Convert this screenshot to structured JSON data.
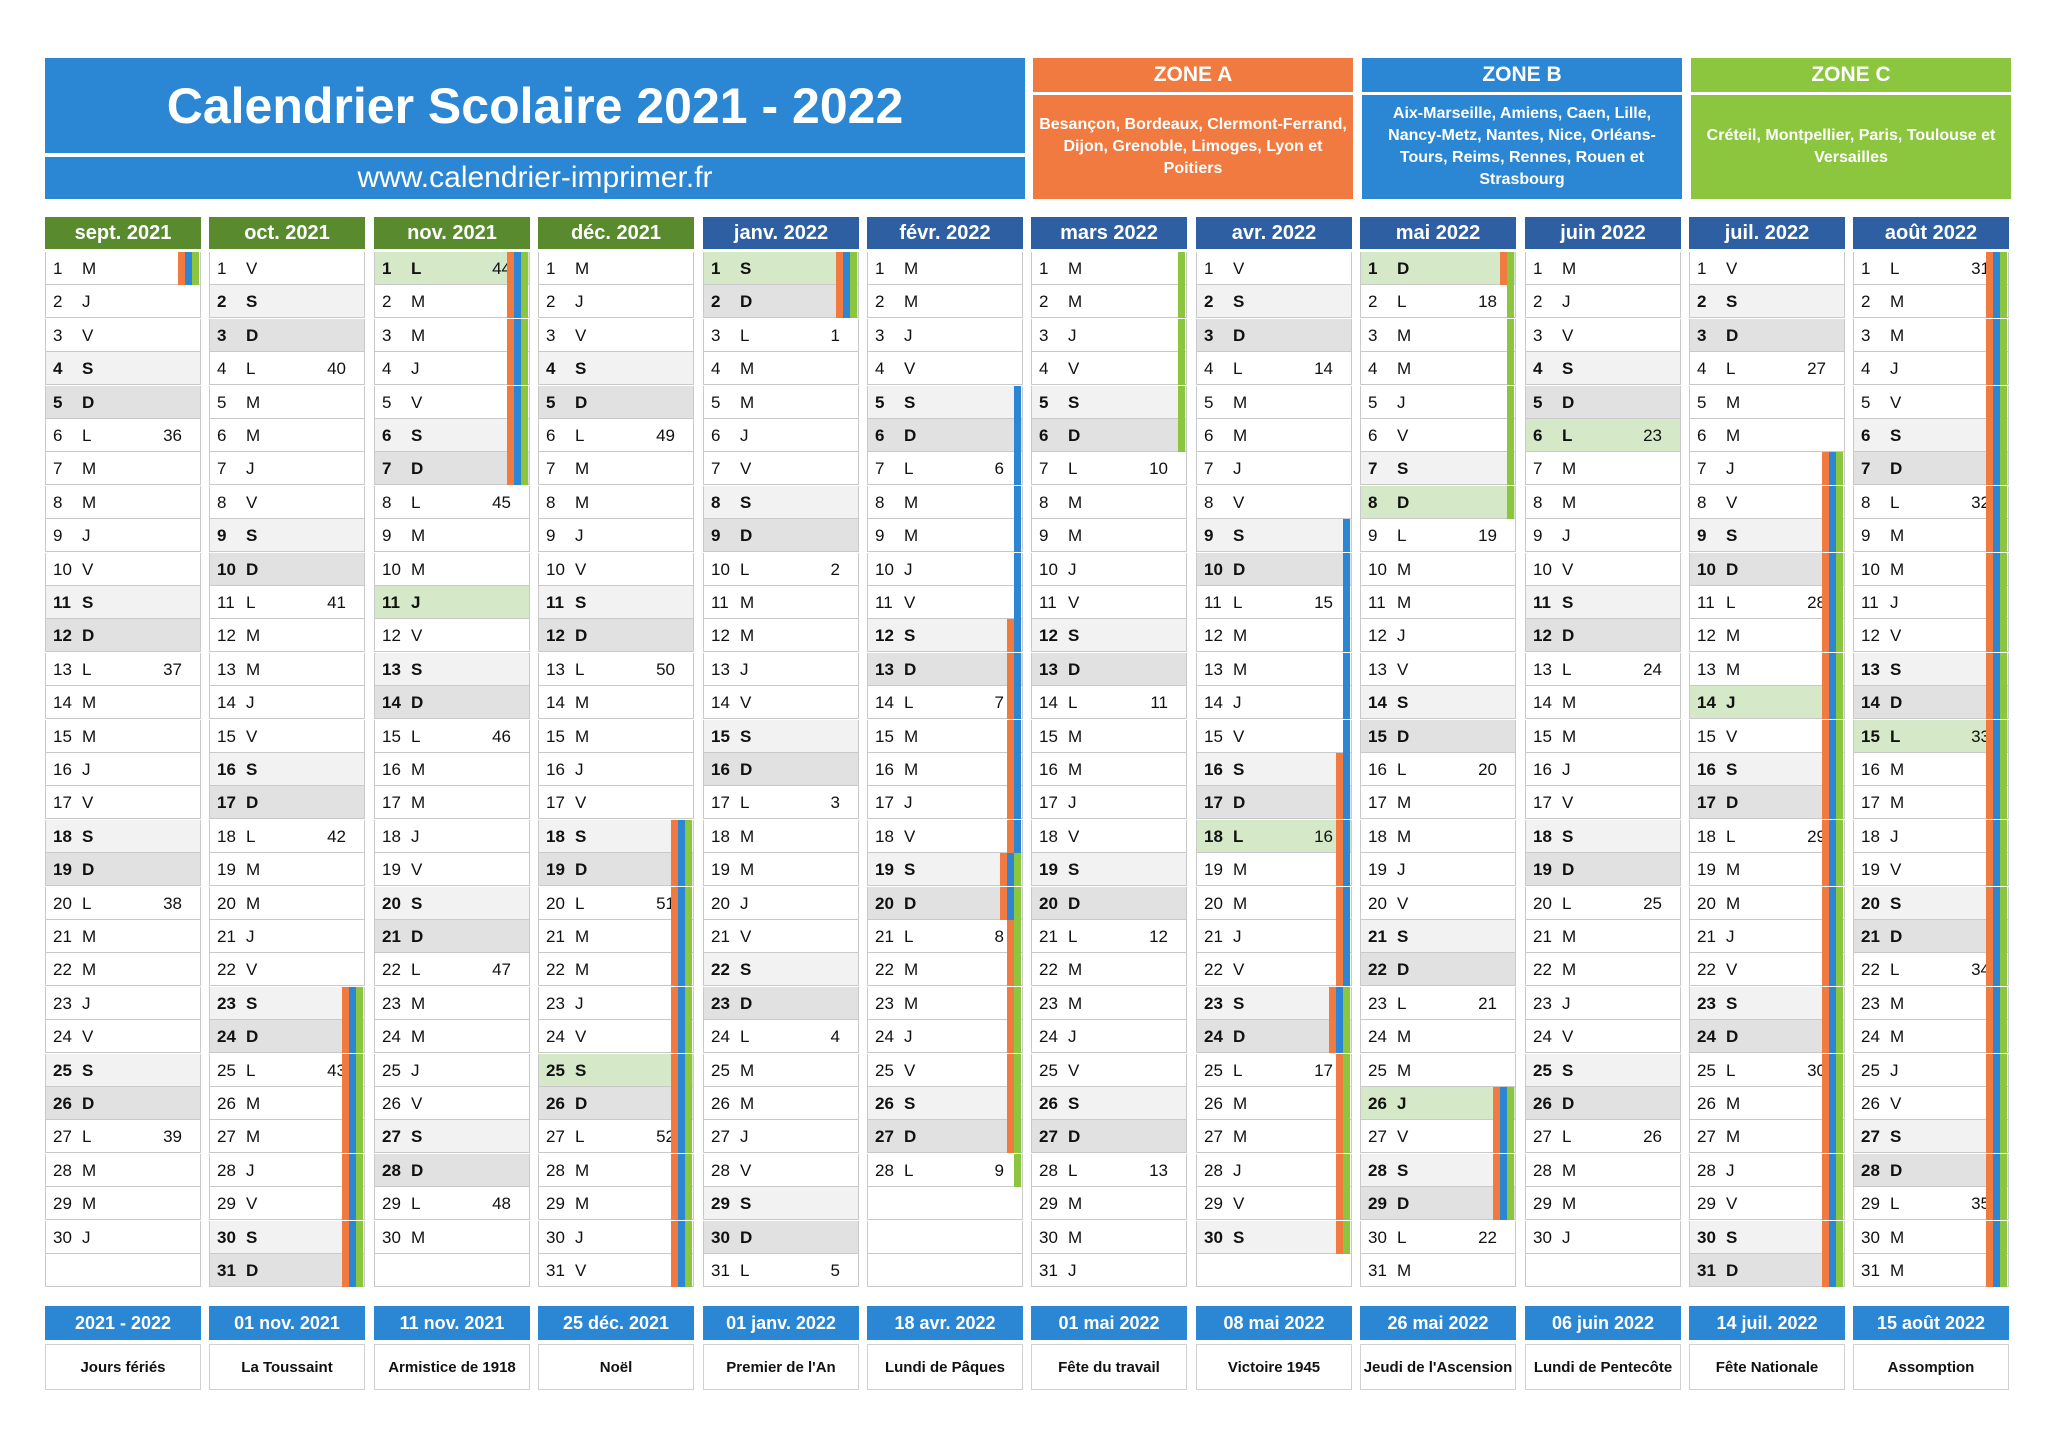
{
  "header": {
    "title": "Calendrier Scolaire 2021 - 2022",
    "url": "www.calendrier-imprimer.fr"
  },
  "zones": [
    {
      "name": "ZONE A",
      "cities": "Besançon, Bordeaux, Clermont-Ferrand, Dijon, Grenoble, Limoges, Lyon et Poitiers",
      "color": "#f07a3f"
    },
    {
      "name": "ZONE B",
      "cities": "Aix-Marseille, Amiens, Caen, Lille, Nancy-Metz, Nantes, Nice, Orléans-Tours, Reims, Rennes, Rouen et Strasbourg",
      "color": "#2b87d3"
    },
    {
      "name": "ZONE C",
      "cities": "Créteil, Montpellier, Paris, Toulouse et Versailles",
      "color": "#8cc63f"
    }
  ],
  "months": [
    {
      "label": "sept. 2021",
      "color": "#5a8a2e",
      "days": 30,
      "startIndex": 2,
      "weeks": {
        "6": "36",
        "13": "37",
        "20": "38",
        "27": "39"
      },
      "holidays": [],
      "bars": [
        {
          "zones": [
            0,
            1,
            2
          ],
          "from": 1,
          "to": 1
        }
      ]
    },
    {
      "label": "oct. 2021",
      "color": "#5a8a2e",
      "days": 31,
      "startIndex": 4,
      "weeks": {
        "4": "40",
        "11": "41",
        "18": "42",
        "25": "43"
      },
      "holidays": [],
      "bars": [
        {
          "zones": [
            0,
            1,
            2
          ],
          "from": 23,
          "to": 31
        }
      ]
    },
    {
      "label": "nov. 2021",
      "color": "#5a8a2e",
      "days": 30,
      "startIndex": 0,
      "weeks": {
        "1": "44",
        "8": "45",
        "15": "46",
        "22": "47",
        "29": "48"
      },
      "holidays": [
        1,
        11
      ],
      "bars": [
        {
          "zones": [
            0,
            1,
            2
          ],
          "from": 1,
          "to": 7
        }
      ]
    },
    {
      "label": "déc. 2021",
      "color": "#5a8a2e",
      "days": 31,
      "startIndex": 2,
      "weeks": {
        "6": "49",
        "13": "50",
        "20": "51",
        "27": "52"
      },
      "holidays": [
        25
      ],
      "bars": [
        {
          "zones": [
            0,
            1,
            2
          ],
          "from": 18,
          "to": 31
        }
      ]
    },
    {
      "label": "janv. 2022",
      "color": "#2e5fa3",
      "days": 31,
      "startIndex": 5,
      "weeks": {
        "3": "1",
        "10": "2",
        "17": "3",
        "24": "4",
        "31": "5"
      },
      "holidays": [
        1
      ],
      "bars": [
        {
          "zones": [
            0,
            1,
            2
          ],
          "from": 1,
          "to": 2
        }
      ]
    },
    {
      "label": "févr. 2022",
      "color": "#2e5fa3",
      "days": 28,
      "startIndex": 1,
      "weeks": {
        "7": "6",
        "14": "7",
        "21": "8",
        "28": "9"
      },
      "holidays": [],
      "bars": [
        {
          "zones": [
            1
          ],
          "from": 5,
          "to": 20
        },
        {
          "zones": [
            0
          ],
          "from": 12,
          "to": 27
        },
        {
          "zones": [
            2
          ],
          "from": 19,
          "to": 28
        }
      ]
    },
    {
      "label": "mars 2022",
      "color": "#2e5fa3",
      "days": 31,
      "startIndex": 1,
      "weeks": {
        "7": "10",
        "14": "11",
        "21": "12",
        "28": "13"
      },
      "holidays": [],
      "bars": [
        {
          "zones": [
            2
          ],
          "from": 1,
          "to": 6
        }
      ]
    },
    {
      "label": "avr. 2022",
      "color": "#2e5fa3",
      "days": 30,
      "startIndex": 4,
      "weeks": {
        "4": "14",
        "11": "15",
        "18": "16",
        "25": "17"
      },
      "holidays": [
        18
      ],
      "bars": [
        {
          "zones": [
            1
          ],
          "from": 9,
          "to": 24
        },
        {
          "zones": [
            0
          ],
          "from": 16,
          "to": 30
        },
        {
          "zones": [
            2
          ],
          "from": 23,
          "to": 30
        }
      ]
    },
    {
      "label": "mai 2022",
      "color": "#2e5fa3",
      "days": 31,
      "startIndex": 6,
      "weeks": {
        "2": "18",
        "9": "19",
        "16": "20",
        "23": "21",
        "30": "22"
      },
      "holidays": [
        1,
        8,
        26
      ],
      "bars": [
        {
          "zones": [
            0
          ],
          "from": 1,
          "to": 1
        },
        {
          "zones": [
            2
          ],
          "from": 1,
          "to": 8
        },
        {
          "zones": [
            0,
            1,
            2
          ],
          "from": 26,
          "to": 29
        }
      ]
    },
    {
      "label": "juin 2022",
      "color": "#2e5fa3",
      "days": 30,
      "startIndex": 2,
      "weeks": {
        "6": "23",
        "13": "24",
        "20": "25",
        "27": "26"
      },
      "holidays": [
        6
      ],
      "bars": []
    },
    {
      "label": "juil. 2022",
      "color": "#2e5fa3",
      "days": 31,
      "startIndex": 4,
      "weeks": {
        "4": "27",
        "11": "28",
        "18": "29",
        "25": "30"
      },
      "holidays": [
        14
      ],
      "bars": [
        {
          "zones": [
            0,
            1,
            2
          ],
          "from": 7,
          "to": 31
        }
      ]
    },
    {
      "label": "août 2022",
      "color": "#2e5fa3",
      "days": 31,
      "startIndex": 0,
      "weeks": {
        "1": "31",
        "8": "32",
        "15": "33",
        "22": "34",
        "29": "35"
      },
      "holidays": [
        15
      ],
      "bars": [
        {
          "zones": [
            0,
            1,
            2
          ],
          "from": 1,
          "to": 31
        }
      ]
    }
  ],
  "dayLetters": [
    "L",
    "M",
    "M",
    "J",
    "V",
    "S",
    "D"
  ],
  "feries": [
    {
      "date": "2021 - 2022",
      "name": "Jours fériés"
    },
    {
      "date": "01 nov. 2021",
      "name": "La Toussaint"
    },
    {
      "date": "11 nov. 2021",
      "name": "Armistice de 1918"
    },
    {
      "date": "25 déc. 2021",
      "name": "Noël"
    },
    {
      "date": "01 janv. 2022",
      "name": "Premier de l'An"
    },
    {
      "date": "18 avr. 2022",
      "name": "Lundi de Pâques"
    },
    {
      "date": "01 mai 2022",
      "name": "Fête du travail"
    },
    {
      "date": "08 mai 2022",
      "name": "Victoire 1945"
    },
    {
      "date": "26 mai 2022",
      "name": "Jeudi de l'Ascension"
    },
    {
      "date": "06 juin 2022",
      "name": "Lundi de Pentecôte"
    },
    {
      "date": "14 juil. 2022",
      "name": "Fête Nationale"
    },
    {
      "date": "15 août 2022",
      "name": "Assomption"
    }
  ]
}
